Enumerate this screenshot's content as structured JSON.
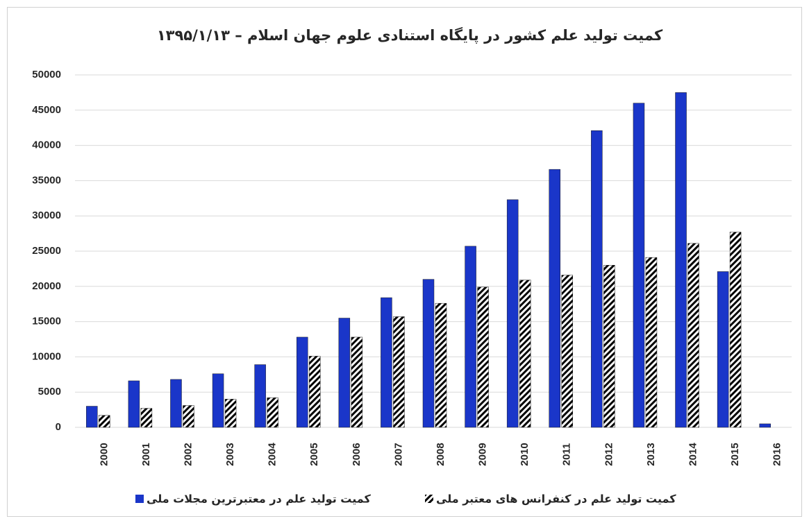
{
  "chart_data": {
    "type": "bar",
    "title": "کمیت تولید علم کشور در پایگاه استنادی علوم جهان اسلام – ۱۳۹۵/۱/۱۳",
    "categories": [
      "2000",
      "2001",
      "2002",
      "2003",
      "2004",
      "2005",
      "2006",
      "2007",
      "2008",
      "2009",
      "2010",
      "2011",
      "2012",
      "2013",
      "2014",
      "2015",
      "2016"
    ],
    "series": [
      {
        "name": "کمیت تولید علم در معتبرترین مجلات ملی",
        "color": "#1a36c9",
        "values": [
          3000,
          6600,
          6800,
          7600,
          8900,
          12800,
          15500,
          18400,
          21000,
          25700,
          32300,
          36600,
          42100,
          46000,
          47500,
          22100,
          500
        ]
      },
      {
        "name": "کمیت تولید علم در کنفرانس های معتبر ملی",
        "color": "#000000",
        "pattern": "diagonal-stripes",
        "values": [
          1700,
          2700,
          3100,
          4000,
          4200,
          10100,
          12800,
          15700,
          17600,
          19900,
          20900,
          21600,
          23000,
          24100,
          26100,
          27700,
          null
        ]
      }
    ],
    "ylim": [
      0,
      50000
    ],
    "yticks": [
      0,
      5000,
      10000,
      15000,
      20000,
      25000,
      30000,
      35000,
      40000,
      45000,
      50000
    ],
    "grid": true,
    "legend": "bottom"
  }
}
